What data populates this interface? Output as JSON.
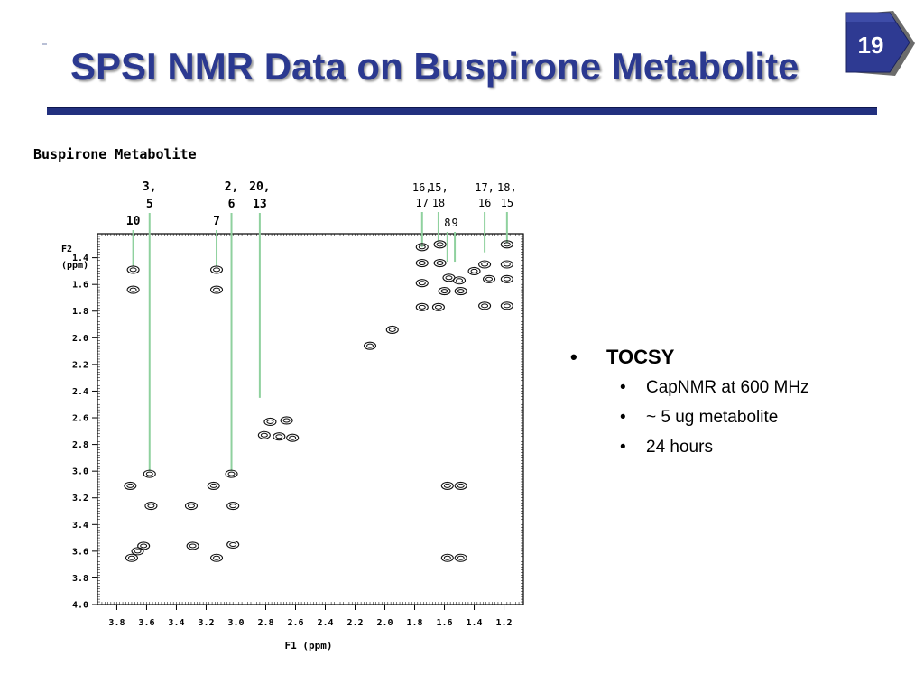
{
  "slide": {
    "title": "SPSI NMR Data on Buspirone Metabolite",
    "slide_number": "19",
    "accent_color": "#2b3990",
    "badge_color": "#2e3a92"
  },
  "bullets": {
    "main": "TOCSY",
    "sub": [
      "CapNMR at 600 MHz",
      "~ 5 ug metabolite",
      "24 hours"
    ]
  },
  "chart_data": {
    "type": "scatter",
    "title": "Buspirone Metabolite",
    "xlabel": "F1 (ppm)",
    "ylabel_lines": [
      "F2",
      "(ppm)"
    ],
    "xlim": [
      3.93,
      1.07
    ],
    "ylim": [
      1.22,
      4.0
    ],
    "x_reversed": true,
    "y_reversed": true,
    "xticks": [
      "3.8",
      "3.6",
      "3.4",
      "3.2",
      "3.0",
      "2.8",
      "2.6",
      "2.4",
      "2.2",
      "2.0",
      "1.8",
      "1.6",
      "1.4",
      "1.2"
    ],
    "yticks": [
      "1.4",
      "1.6",
      "1.8",
      "2.0",
      "2.2",
      "2.4",
      "2.6",
      "2.8",
      "3.0",
      "3.2",
      "3.4",
      "3.6",
      "3.8",
      "4.0"
    ],
    "annotations": [
      {
        "lines": [
          "3,",
          "5"
        ],
        "x": 3.58,
        "y_end": 3.0
      },
      {
        "lines": [
          "10"
        ],
        "x": 3.69,
        "y_end": 1.46
      },
      {
        "lines": [
          "2,",
          "6"
        ],
        "x": 3.03,
        "y_end": 3.0
      },
      {
        "lines": [
          "7"
        ],
        "x": 3.13,
        "y_end": 1.46
      },
      {
        "lines": [
          "20,",
          "13"
        ],
        "x": 2.84,
        "y_end": 2.45
      },
      {
        "lines": [
          "16,",
          "17"
        ],
        "x": 1.75,
        "y_end": 1.32
      },
      {
        "lines": [
          "8"
        ],
        "x": 1.58,
        "y_end": 1.43
      },
      {
        "lines": [
          "15,",
          "18"
        ],
        "x": 1.64,
        "y_end": 1.28
      },
      {
        "lines": [
          "9"
        ],
        "x": 1.53,
        "y_end": 1.43
      },
      {
        "lines": [
          "17,",
          "16"
        ],
        "x": 1.33,
        "y_end": 1.36
      },
      {
        "lines": [
          "18,",
          "15"
        ],
        "x": 1.18,
        "y_end": 1.29
      }
    ],
    "points": [
      {
        "x": 3.69,
        "y": 1.49
      },
      {
        "x": 3.69,
        "y": 1.64
      },
      {
        "x": 3.13,
        "y": 1.49
      },
      {
        "x": 3.13,
        "y": 1.64
      },
      {
        "x": 3.58,
        "y": 3.02
      },
      {
        "x": 3.71,
        "y": 3.11
      },
      {
        "x": 3.57,
        "y": 3.26
      },
      {
        "x": 3.62,
        "y": 3.56
      },
      {
        "x": 3.66,
        "y": 3.6
      },
      {
        "x": 3.7,
        "y": 3.65
      },
      {
        "x": 3.03,
        "y": 3.02
      },
      {
        "x": 3.15,
        "y": 3.11
      },
      {
        "x": 3.02,
        "y": 3.26
      },
      {
        "x": 3.02,
        "y": 3.55
      },
      {
        "x": 3.13,
        "y": 3.65
      },
      {
        "x": 3.3,
        "y": 3.26
      },
      {
        "x": 3.29,
        "y": 3.56
      },
      {
        "x": 2.77,
        "y": 2.63
      },
      {
        "x": 2.66,
        "y": 2.62
      },
      {
        "x": 2.81,
        "y": 2.73
      },
      {
        "x": 2.71,
        "y": 2.74
      },
      {
        "x": 2.62,
        "y": 2.75
      },
      {
        "x": 1.95,
        "y": 1.94
      },
      {
        "x": 2.1,
        "y": 2.06
      },
      {
        "x": 1.75,
        "y": 1.32
      },
      {
        "x": 1.75,
        "y": 1.44
      },
      {
        "x": 1.75,
        "y": 1.59
      },
      {
        "x": 1.75,
        "y": 1.77
      },
      {
        "x": 1.63,
        "y": 1.3
      },
      {
        "x": 1.63,
        "y": 1.44
      },
      {
        "x": 1.64,
        "y": 1.77
      },
      {
        "x": 1.57,
        "y": 1.55
      },
      {
        "x": 1.5,
        "y": 1.57
      },
      {
        "x": 1.6,
        "y": 1.65
      },
      {
        "x": 1.49,
        "y": 1.65
      },
      {
        "x": 1.33,
        "y": 1.45
      },
      {
        "x": 1.4,
        "y": 1.5
      },
      {
        "x": 1.3,
        "y": 1.56
      },
      {
        "x": 1.33,
        "y": 1.76
      },
      {
        "x": 1.18,
        "y": 1.3
      },
      {
        "x": 1.18,
        "y": 1.45
      },
      {
        "x": 1.18,
        "y": 1.56
      },
      {
        "x": 1.18,
        "y": 1.76
      },
      {
        "x": 1.58,
        "y": 3.11
      },
      {
        "x": 1.49,
        "y": 3.11
      },
      {
        "x": 1.58,
        "y": 3.65
      },
      {
        "x": 1.49,
        "y": 3.65
      }
    ]
  }
}
